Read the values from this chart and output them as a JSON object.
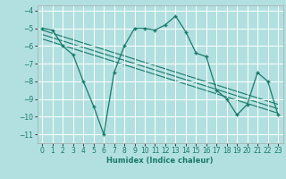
{
  "xlabel": "Humidex (Indice chaleur)",
  "ylabel": "",
  "bg_color": "#b2e0e0",
  "grid_color": "#ffffff",
  "line_color": "#1a7a6a",
  "xlim": [
    -0.5,
    23.5
  ],
  "ylim": [
    -11.5,
    -3.7
  ],
  "xticks": [
    0,
    1,
    2,
    3,
    4,
    5,
    6,
    7,
    8,
    9,
    10,
    11,
    12,
    13,
    14,
    15,
    16,
    17,
    18,
    19,
    20,
    21,
    22,
    23
  ],
  "yticks": [
    -11,
    -10,
    -9,
    -8,
    -7,
    -6,
    -5,
    -4
  ],
  "curve_x": [
    0,
    1,
    2,
    3,
    4,
    5,
    6,
    7,
    8,
    9,
    10,
    11,
    12,
    13,
    14,
    15,
    16,
    17,
    18,
    19,
    20,
    21,
    22,
    23
  ],
  "curve_y": [
    -5.0,
    -5.1,
    -6.0,
    -6.5,
    -8.0,
    -9.4,
    -11.0,
    -7.5,
    -6.0,
    -5.0,
    -5.0,
    -5.1,
    -4.8,
    -4.3,
    -5.2,
    -6.4,
    -6.6,
    -8.5,
    -9.0,
    -9.9,
    -9.3,
    -7.5,
    -8.0,
    -9.9
  ],
  "trend1_x": [
    0,
    23
  ],
  "trend1_y": [
    -5.1,
    -9.3
  ],
  "trend2_x": [
    0,
    23
  ],
  "trend2_y": [
    -5.35,
    -9.55
  ],
  "trend3_x": [
    0,
    23
  ],
  "trend3_y": [
    -5.6,
    -9.8
  ]
}
